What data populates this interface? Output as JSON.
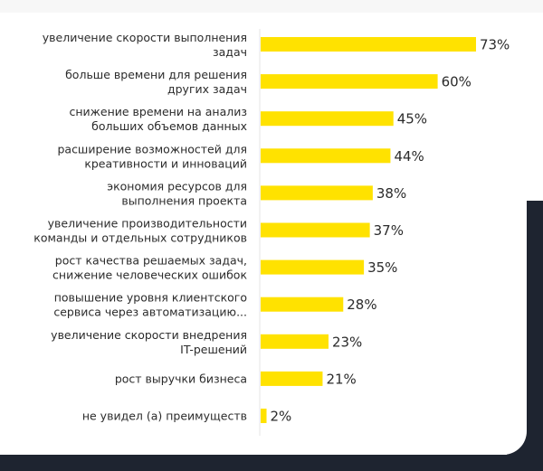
{
  "chart_data": {
    "type": "bar",
    "orientation": "horizontal",
    "categories": [
      [
        "увеличение скорости выполнения",
        "задач"
      ],
      [
        "больше времени для решения",
        "других задач"
      ],
      [
        "снижение времени на анализ",
        "больших объемов данных"
      ],
      [
        "расширение возможностей для",
        "креативности и инноваций"
      ],
      [
        "экономия ресурсов для",
        "выполнения проекта"
      ],
      [
        "увеличение производительности",
        "команды и отдельных сотрудников"
      ],
      [
        "рост качества решаемых задач,",
        "снижение человеческих ошибок"
      ],
      [
        "повышение уровня клиентского",
        "сервиса через автоматизацию..."
      ],
      [
        "увеличение скорости внедрения",
        "IT-решений"
      ],
      [
        "рост выручки бизнеса"
      ],
      [
        "не увидел (а) преимуществ"
      ]
    ],
    "values": [
      73,
      60,
      45,
      44,
      38,
      37,
      35,
      28,
      23,
      21,
      2
    ],
    "value_labels": [
      "73%",
      "60%",
      "45%",
      "44%",
      "38%",
      "37%",
      "35%",
      "28%",
      "23%",
      "21%",
      "2%"
    ],
    "xlim": [
      0,
      100
    ],
    "grid": false,
    "colors": {
      "bar": "#ffe200",
      "text": "#2b2b2b",
      "axis": "#e6e6e6",
      "background_dark": "#1e2430"
    }
  }
}
